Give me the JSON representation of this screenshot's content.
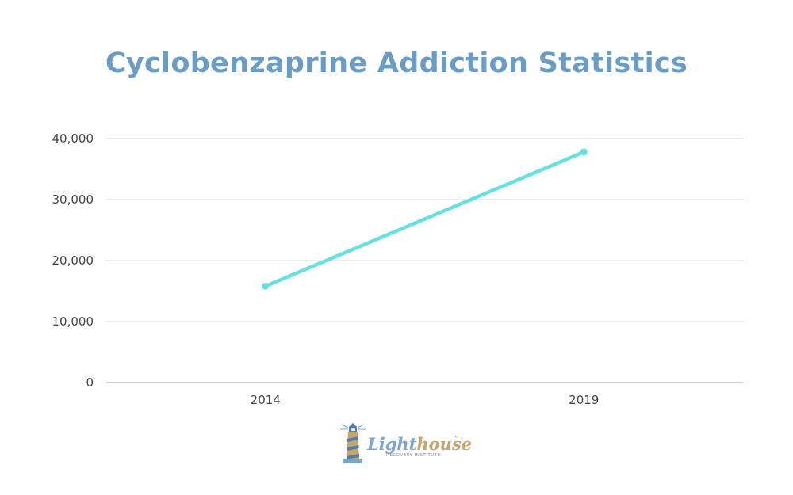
{
  "chart_data": {
    "type": "line",
    "title": "Cyclobenzaprine Addiction Statistics",
    "x": [
      "2014",
      "2019"
    ],
    "series": [
      {
        "values": [
          15800,
          37800
        ],
        "color": "#68e0e0"
      }
    ],
    "yticks": [
      "0",
      "10,000",
      "20,000",
      "30,000",
      "40,000"
    ],
    "ylim": [
      0,
      40000
    ],
    "xlabel": "",
    "ylabel": "",
    "grid": true,
    "legend": "none"
  },
  "logo": {
    "word_light": "Light",
    "word_house": "house",
    "tm": "™",
    "subtitle": "RECOVERY INSTITUTE"
  },
  "colors": {
    "title": "#6b9cc4",
    "grid": "#d9d9d9",
    "axis": "#bfbfbf",
    "series": "#68e0e0"
  }
}
